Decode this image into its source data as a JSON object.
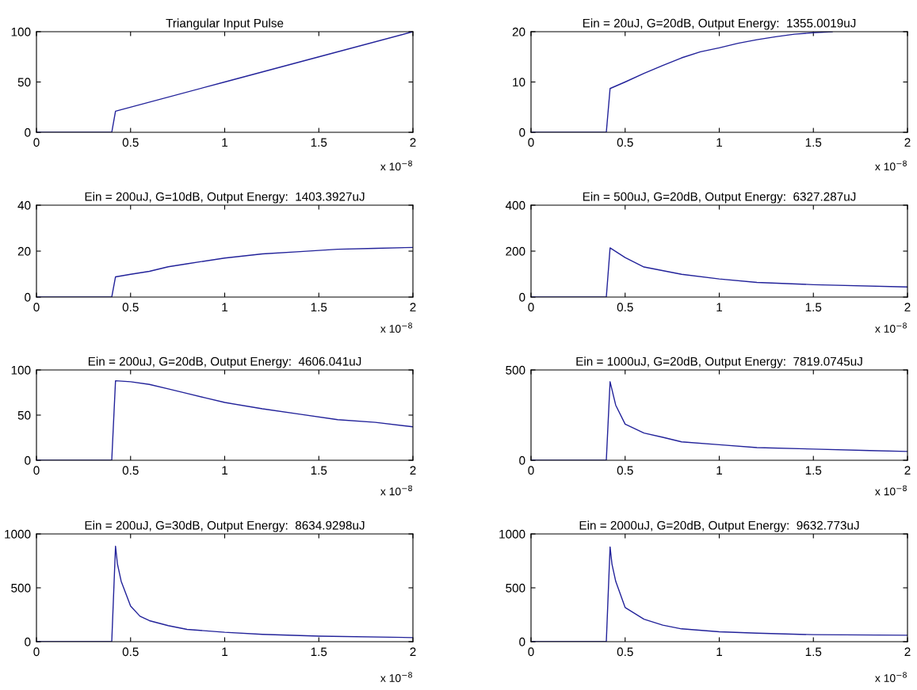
{
  "chart_data": [
    {
      "type": "line",
      "title": "Triangular Input Pulse",
      "x": [
        0,
        0.4,
        0.42,
        1,
        1.5,
        2
      ],
      "series": [
        {
          "color": "#22229a",
          "values": [
            0,
            0,
            21,
            50,
            75,
            100
          ]
        }
      ],
      "xlim": [
        0,
        2
      ],
      "xticks": [
        0,
        0.5,
        1,
        1.5,
        2
      ],
      "ylim": [
        0,
        100
      ],
      "yticks": [
        0,
        50,
        100
      ],
      "annotations": [
        "x 10$^{−8}$"
      ]
    },
    {
      "type": "line",
      "title": "Ein = 20uJ, G=20dB, Output Energy:  1355.0019uJ",
      "x": [
        0,
        0.4,
        0.42,
        0.5,
        0.6,
        0.7,
        0.8,
        0.9,
        1.0,
        1.1,
        1.2,
        1.3,
        1.4,
        1.5,
        1.6
      ],
      "series": [
        {
          "color": "#22229a",
          "values": [
            0,
            0,
            8.7,
            10,
            11.7,
            13.3,
            14.8,
            16,
            16.8,
            17.7,
            18.4,
            19,
            19.5,
            19.8,
            20
          ]
        }
      ],
      "xlim": [
        0,
        2
      ],
      "xticks": [
        0,
        0.5,
        1,
        1.5,
        2
      ],
      "ylim": [
        0,
        20
      ],
      "yticks": [
        0,
        10,
        20
      ],
      "annotations": [
        "x 10$^{−8}$"
      ]
    },
    {
      "type": "line",
      "title": "Ein = 200uJ, G=10dB, Output Energy:  1403.3927uJ",
      "x": [
        0,
        0.4,
        0.42,
        0.5,
        0.6,
        0.7,
        0.8,
        1.0,
        1.2,
        1.4,
        1.6,
        1.8,
        2
      ],
      "series": [
        {
          "color": "#22229a",
          "values": [
            0,
            0,
            8.8,
            9.9,
            11.2,
            13.2,
            14.5,
            17,
            18.8,
            19.8,
            20.8,
            21.2,
            21.6
          ]
        }
      ],
      "xlim": [
        0,
        2
      ],
      "xticks": [
        0,
        0.5,
        1,
        1.5,
        2
      ],
      "ylim": [
        0,
        40
      ],
      "yticks": [
        0,
        20,
        40
      ],
      "annotations": [
        "x 10$^{−8}$"
      ]
    },
    {
      "type": "line",
      "title": "Ein = 500uJ, G=20dB, Output Energy:  6327.287uJ",
      "x": [
        0,
        0.4,
        0.42,
        0.5,
        0.6,
        0.8,
        1.0,
        1.2,
        1.5,
        2
      ],
      "series": [
        {
          "color": "#22229a",
          "values": [
            0,
            0,
            214,
            172,
            131,
            99,
            79,
            64,
            54,
            44
          ]
        }
      ],
      "xlim": [
        0,
        2
      ],
      "xticks": [
        0,
        0.5,
        1,
        1.5,
        2
      ],
      "ylim": [
        0,
        400
      ],
      "yticks": [
        0,
        200,
        400
      ],
      "annotations": [
        "x 10$^{−8}$"
      ]
    },
    {
      "type": "line",
      "title": "Ein = 200uJ, G=20dB, Output Energy:  4606.041uJ",
      "x": [
        0,
        0.4,
        0.42,
        0.5,
        0.6,
        0.7,
        0.8,
        0.9,
        1.0,
        1.2,
        1.4,
        1.6,
        1.8,
        2
      ],
      "series": [
        {
          "color": "#22229a",
          "values": [
            0,
            0,
            88,
            87,
            84,
            79,
            74,
            69,
            64,
            57,
            51,
            45,
            42,
            37
          ]
        }
      ],
      "xlim": [
        0,
        2
      ],
      "xticks": [
        0,
        0.5,
        1,
        1.5,
        2
      ],
      "ylim": [
        0,
        100
      ],
      "yticks": [
        0,
        50,
        100
      ],
      "annotations": [
        "x 10$^{−8}$"
      ]
    },
    {
      "type": "line",
      "title": "Ein = 1000uJ, G=20dB, Output Energy:  7819.0745uJ",
      "x": [
        0,
        0.4,
        0.42,
        0.45,
        0.5,
        0.6,
        0.7,
        0.8,
        1.0,
        1.2,
        1.5,
        1.8,
        2
      ],
      "series": [
        {
          "color": "#22229a",
          "values": [
            0,
            0,
            435,
            305,
            200,
            151,
            127,
            102,
            86,
            70,
            62,
            54,
            49
          ]
        }
      ],
      "xlim": [
        0,
        2
      ],
      "xticks": [
        0,
        0.5,
        1,
        1.5,
        2
      ],
      "ylim": [
        0,
        500
      ],
      "yticks": [
        0,
        500
      ],
      "annotations": [
        "x 10$^{−8}$"
      ]
    },
    {
      "type": "line",
      "title": "Ein = 200uJ, G=30dB, Output Energy:  8634.9298uJ",
      "x": [
        0,
        0.4,
        0.42,
        0.43,
        0.45,
        0.5,
        0.55,
        0.6,
        0.7,
        0.8,
        1.0,
        1.2,
        1.5,
        2
      ],
      "series": [
        {
          "color": "#22229a",
          "values": [
            0,
            0,
            886,
            724,
            561,
            331,
            236,
            195,
            149,
            114,
            87,
            68,
            51,
            38
          ]
        }
      ],
      "xlim": [
        0,
        2
      ],
      "xticks": [
        0,
        0.5,
        1,
        1.5,
        2
      ],
      "ylim": [
        0,
        1000
      ],
      "yticks": [
        0,
        500,
        1000
      ],
      "annotations": [
        "x 10$^{−8}$"
      ]
    },
    {
      "type": "line",
      "title": "Ein = 2000uJ, G=20dB, Output Energy:  9632.773uJ",
      "x": [
        0,
        0.4,
        0.42,
        0.43,
        0.45,
        0.5,
        0.6,
        0.7,
        0.8,
        1.0,
        1.2,
        1.5,
        2
      ],
      "series": [
        {
          "color": "#22229a",
          "values": [
            0,
            0,
            880,
            720,
            560,
            317,
            209,
            154,
            119,
            92,
            79,
            65,
            60
          ]
        }
      ],
      "xlim": [
        0,
        2
      ],
      "xticks": [
        0,
        0.5,
        1,
        1.5,
        2
      ],
      "ylim": [
        0,
        1000
      ],
      "yticks": [
        0,
        500,
        1000
      ],
      "annotations": [
        "x 10$^{−8}$"
      ]
    }
  ]
}
